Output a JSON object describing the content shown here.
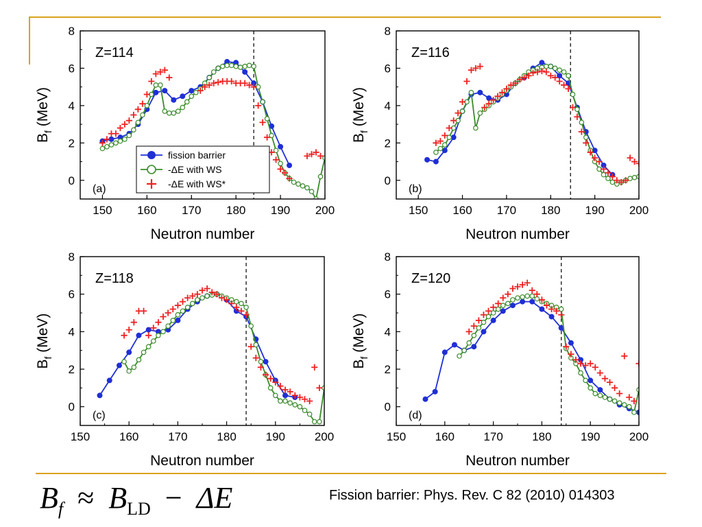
{
  "footer": {
    "formula": {
      "lhs": "B",
      "lhs_sub": "f",
      "approx": "≈",
      "rhs_b": "B",
      "rhs_sub": "LD",
      "minus": "−",
      "delta_e": "ΔE"
    },
    "citation": "Fission barrier: Phys. Rev. C 82 (2010) 014303"
  },
  "colors": {
    "fission_barrier": "#1f2fd6",
    "ws": "#3a8a2a",
    "ws_star": "#ee2222",
    "accent_rule": "#d9a21b"
  },
  "chart_data": [
    {
      "type": "line",
      "panel_label": "(a)",
      "title": "Z=114",
      "xlabel": "Neutron number",
      "ylabel": "B_f (MeV)",
      "ylabel_main": "B",
      "ylabel_sub": "f",
      "ylabel_rest": " (MeV)",
      "xlim": [
        145,
        200
      ],
      "ylim": [
        -1,
        8
      ],
      "xticks": [
        150,
        160,
        170,
        180,
        190,
        200
      ],
      "yticks": [
        0,
        2,
        4,
        6,
        8
      ],
      "vline": 184,
      "legend": {
        "position": "center-left",
        "entries": [
          "fission barrier",
          "-ΔE with WS",
          "-ΔE with WS*"
        ]
      },
      "series": [
        {
          "name": "fission barrier",
          "marker": "filled-circle",
          "x": [
            150,
            152,
            154,
            156,
            158,
            160,
            162,
            164,
            166,
            168,
            170,
            172,
            174,
            176,
            178,
            180,
            182,
            184,
            186,
            188,
            190,
            192
          ],
          "y": [
            2.1,
            2.2,
            2.3,
            2.5,
            3.0,
            3.8,
            4.7,
            4.8,
            4.3,
            4.5,
            4.8,
            5.0,
            5.5,
            6.0,
            6.35,
            6.3,
            5.8,
            5.2,
            4.2,
            2.9,
            1.8,
            0.8
          ]
        },
        {
          "name": "-ΔE with WS",
          "marker": "open-circle",
          "x": [
            150,
            151,
            152,
            153,
            154,
            155,
            156,
            157,
            158,
            159,
            160,
            161,
            162,
            163,
            164,
            165,
            166,
            167,
            168,
            169,
            170,
            171,
            172,
            173,
            174,
            175,
            176,
            177,
            178,
            179,
            180,
            181,
            182,
            183,
            184,
            185,
            186,
            187,
            188,
            189,
            190,
            191,
            192,
            193,
            194,
            195,
            196,
            197,
            198,
            199,
            200
          ],
          "y": [
            1.7,
            1.8,
            1.9,
            2.0,
            2.1,
            2.2,
            2.4,
            2.7,
            3.1,
            3.5,
            4.0,
            4.6,
            5.1,
            5.1,
            3.7,
            3.6,
            3.6,
            3.7,
            3.9,
            4.2,
            4.5,
            4.7,
            4.9,
            5.2,
            5.5,
            5.8,
            6.0,
            6.1,
            6.15,
            6.15,
            6.1,
            6.05,
            6.1,
            6.15,
            6.1,
            5.0,
            4.2,
            3.3,
            2.4,
            1.6,
            0.9,
            0.4,
            0.1,
            -0.1,
            -0.2,
            -0.3,
            -0.4,
            -0.6,
            -1.0,
            0.2,
            1.2
          ]
        },
        {
          "name": "-ΔE with WS*",
          "marker": "plus",
          "x": [
            150,
            151,
            152,
            153,
            154,
            155,
            156,
            157,
            158,
            159,
            160,
            161,
            162,
            163,
            164,
            165,
            172,
            173,
            174,
            175,
            176,
            177,
            178,
            179,
            180,
            181,
            182,
            183,
            184,
            185,
            186,
            187,
            188,
            189,
            190,
            191,
            192,
            196,
            197,
            198,
            199
          ],
          "y": [
            2.0,
            2.2,
            2.5,
            2.5,
            2.8,
            3.0,
            3.2,
            3.5,
            3.8,
            4.1,
            4.6,
            5.3,
            5.7,
            5.8,
            5.9,
            5.5,
            4.8,
            5.0,
            5.1,
            5.2,
            5.25,
            5.3,
            5.3,
            5.3,
            5.2,
            5.2,
            5.2,
            5.1,
            5.0,
            4.0,
            3.1,
            2.3,
            1.5,
            1.1,
            0.6,
            0.4,
            0.1,
            1.3,
            1.4,
            1.5,
            1.3
          ]
        }
      ]
    },
    {
      "type": "line",
      "panel_label": "(b)",
      "title": "Z=116",
      "xlabel": "Neutron number",
      "ylabel": "B_f (MeV)",
      "ylabel_main": "B",
      "ylabel_sub": "f",
      "ylabel_rest": " (MeV)",
      "xlim": [
        145,
        200
      ],
      "ylim": [
        -1,
        8
      ],
      "xticks": [
        150,
        160,
        170,
        180,
        190,
        200
      ],
      "yticks": [
        0,
        2,
        4,
        6,
        8
      ],
      "vline": 184.5,
      "series": [
        {
          "name": "fission barrier",
          "marker": "filled-circle",
          "x": [
            152,
            154,
            156,
            158,
            160,
            162,
            164,
            166,
            168,
            170,
            172,
            174,
            176,
            178,
            180,
            182,
            184,
            186,
            188,
            190,
            192,
            194
          ],
          "y": [
            1.1,
            1.0,
            1.6,
            2.3,
            3.7,
            4.6,
            4.7,
            4.4,
            4.3,
            4.6,
            5.2,
            5.5,
            6.0,
            6.3,
            6.1,
            5.6,
            5.2,
            3.9,
            2.6,
            1.6,
            0.8,
            0.3
          ]
        },
        {
          "name": "-ΔE with WS",
          "marker": "open-circle",
          "x": [
            154,
            155,
            156,
            157,
            158,
            159,
            160,
            161,
            162,
            163,
            164,
            165,
            166,
            167,
            168,
            169,
            170,
            171,
            172,
            173,
            174,
            175,
            176,
            177,
            178,
            179,
            180,
            181,
            182,
            183,
            184,
            185,
            186,
            187,
            188,
            189,
            190,
            191,
            192,
            193,
            194,
            195,
            196,
            197,
            198,
            199,
            200
          ],
          "y": [
            1.5,
            1.7,
            1.9,
            2.3,
            2.8,
            3.2,
            3.7,
            4.2,
            4.7,
            2.8,
            3.6,
            3.8,
            4.0,
            4.2,
            4.4,
            4.6,
            4.8,
            5.0,
            5.2,
            5.4,
            5.6,
            5.8,
            5.9,
            6.0,
            6.05,
            6.1,
            6.1,
            6.0,
            5.9,
            5.8,
            5.6,
            4.6,
            3.8,
            3.1,
            2.3,
            1.6,
            1.0,
            0.6,
            0.3,
            0.1,
            -0.1,
            -0.2,
            -0.1,
            0.0,
            0.1,
            0.15,
            0.2
          ]
        },
        {
          "name": "-ΔE with WS*",
          "marker": "plus",
          "x": [
            154,
            155,
            156,
            157,
            158,
            159,
            160,
            161,
            162,
            163,
            164,
            165,
            166,
            167,
            168,
            169,
            170,
            171,
            172,
            173,
            174,
            175,
            176,
            177,
            178,
            179,
            180,
            181,
            182,
            183,
            184,
            185,
            186,
            187,
            188,
            189,
            190,
            191,
            192,
            193,
            194,
            195,
            196,
            197,
            198,
            199,
            200
          ],
          "y": [
            2.0,
            2.1,
            2.4,
            2.8,
            3.2,
            3.6,
            4.2,
            5.3,
            5.9,
            6.0,
            6.1,
            3.9,
            4.1,
            4.3,
            4.5,
            4.7,
            4.9,
            5.1,
            5.2,
            5.4,
            5.5,
            5.6,
            5.75,
            5.8,
            5.85,
            5.8,
            5.6,
            5.5,
            5.3,
            5.1,
            4.9,
            3.9,
            3.4,
            2.6,
            2.0,
            1.5,
            1.2,
            1.0,
            0.6,
            0.4,
            0.2,
            0.0,
            -0.1,
            0.0,
            1.2,
            1.0,
            0.9
          ]
        }
      ]
    },
    {
      "type": "line",
      "panel_label": "(c)",
      "title": "Z=118",
      "xlabel": "Neutron number",
      "ylabel": "B_f (MeV)",
      "ylabel_main": "B",
      "ylabel_sub": "f",
      "ylabel_rest": " (MeV)",
      "xlim": [
        150,
        200
      ],
      "ylim": [
        -1,
        8
      ],
      "xticks": [
        150,
        160,
        170,
        180,
        190,
        200
      ],
      "yticks": [
        0,
        2,
        4,
        6,
        8
      ],
      "vline": 184,
      "series": [
        {
          "name": "fission barrier",
          "marker": "filled-circle",
          "x": [
            154,
            156,
            158,
            160,
            162,
            164,
            166,
            168,
            170,
            172,
            174,
            176,
            178,
            180,
            182,
            184,
            186,
            188,
            190,
            192,
            194
          ],
          "y": [
            0.6,
            1.4,
            2.2,
            2.9,
            3.8,
            4.1,
            4.0,
            4.1,
            4.6,
            5.2,
            5.6,
            5.9,
            6.0,
            5.7,
            5.1,
            4.8,
            3.6,
            2.4,
            1.4,
            0.6,
            0.5
          ]
        },
        {
          "name": "-ΔE with WS",
          "marker": "open-circle",
          "x": [
            159,
            160,
            161,
            162,
            163,
            164,
            165,
            166,
            167,
            168,
            169,
            170,
            171,
            172,
            173,
            174,
            175,
            176,
            177,
            178,
            179,
            180,
            181,
            182,
            183,
            184,
            185,
            186,
            187,
            188,
            189,
            190,
            191,
            192,
            193,
            194,
            195,
            196,
            197,
            198,
            199,
            200
          ],
          "y": [
            2.4,
            1.9,
            2.1,
            2.5,
            2.9,
            3.2,
            3.5,
            3.8,
            4.0,
            4.3,
            4.6,
            4.9,
            5.1,
            5.3,
            5.5,
            5.7,
            5.8,
            5.9,
            5.95,
            6.0,
            5.9,
            5.8,
            5.7,
            5.6,
            5.5,
            5.3,
            4.3,
            3.3,
            2.4,
            1.7,
            1.0,
            0.6,
            0.3,
            0.3,
            0.2,
            0.1,
            0.0,
            -0.2,
            -0.4,
            -0.8,
            -0.8,
            1.0
          ]
        },
        {
          "name": "-ΔE with WS*",
          "marker": "plus",
          "x": [
            159,
            160,
            161,
            162,
            163,
            164,
            165,
            166,
            167,
            168,
            169,
            170,
            171,
            172,
            173,
            174,
            175,
            176,
            177,
            178,
            179,
            180,
            181,
            182,
            183,
            184,
            185,
            186,
            187,
            188,
            189,
            190,
            191,
            192,
            193,
            194,
            195,
            196,
            197,
            198,
            199
          ],
          "y": [
            3.8,
            4.1,
            4.5,
            5.1,
            5.1,
            3.8,
            4.2,
            4.5,
            4.8,
            5.0,
            5.2,
            5.4,
            5.6,
            5.8,
            5.9,
            6.0,
            6.2,
            6.3,
            6.1,
            6.0,
            5.8,
            5.7,
            5.5,
            5.3,
            5.1,
            4.9,
            3.2,
            2.6,
            2.1,
            1.7,
            1.5,
            1.3,
            1.1,
            0.9,
            0.8,
            0.6,
            0.5,
            0.4,
            0.3,
            2.1,
            1.0
          ]
        }
      ]
    },
    {
      "type": "line",
      "panel_label": "(d)",
      "title": "Z=120",
      "xlabel": "Neutron number",
      "ylabel": "B_f (MeV)",
      "ylabel_main": "B",
      "ylabel_sub": "f",
      "ylabel_rest": " (MeV)",
      "xlim": [
        150,
        200
      ],
      "ylim": [
        -1,
        8
      ],
      "xticks": [
        150,
        160,
        170,
        180,
        190,
        200
      ],
      "yticks": [
        0,
        2,
        4,
        6,
        8
      ],
      "vline": 184,
      "series": [
        {
          "name": "fission barrier",
          "marker": "filled-circle",
          "x": [
            156,
            158,
            160,
            162,
            164,
            166,
            168,
            170,
            172,
            174,
            176,
            178,
            180,
            182,
            184,
            186,
            188,
            190,
            192,
            194,
            196,
            198,
            200
          ],
          "y": [
            0.4,
            0.8,
            2.9,
            3.3,
            3.0,
            3.2,
            4.0,
            4.6,
            5.1,
            5.4,
            5.6,
            5.6,
            5.2,
            4.8,
            4.2,
            3.4,
            2.5,
            1.4,
            0.9,
            0.4,
            0.1,
            -0.1,
            -0.3
          ]
        },
        {
          "name": "-ΔE with WS",
          "marker": "open-circle",
          "x": [
            163,
            164,
            165,
            166,
            167,
            168,
            169,
            170,
            171,
            172,
            173,
            174,
            175,
            176,
            177,
            178,
            179,
            180,
            181,
            182,
            183,
            184,
            185,
            186,
            187,
            188,
            189,
            190,
            191,
            192,
            193,
            194,
            195,
            196,
            197,
            198,
            199,
            200
          ],
          "y": [
            2.7,
            3.0,
            3.4,
            3.8,
            4.2,
            4.5,
            4.8,
            5.0,
            5.2,
            5.4,
            5.5,
            5.7,
            5.8,
            5.85,
            5.9,
            5.9,
            5.75,
            5.6,
            5.5,
            5.4,
            5.3,
            5.2,
            3.1,
            2.6,
            2.3,
            1.8,
            1.4,
            1.0,
            0.7,
            0.6,
            0.5,
            0.4,
            0.3,
            0.2,
            0.1,
            0.0,
            -0.3,
            0.9
          ]
        },
        {
          "name": "-ΔE with WS*",
          "marker": "plus",
          "x": [
            165,
            166,
            167,
            168,
            169,
            170,
            171,
            172,
            173,
            174,
            175,
            176,
            177,
            178,
            179,
            180,
            181,
            182,
            183,
            184,
            185,
            186,
            187,
            188,
            189,
            190,
            191,
            192,
            193,
            194,
            195,
            196,
            197,
            198,
            199,
            200
          ],
          "y": [
            4.0,
            4.3,
            4.6,
            4.9,
            5.1,
            5.3,
            5.5,
            5.8,
            6.0,
            6.3,
            6.4,
            6.5,
            6.6,
            6.2,
            6.0,
            5.7,
            5.4,
            5.2,
            5.1,
            4.9,
            3.2,
            2.8,
            2.5,
            2.3,
            2.2,
            2.3,
            2.1,
            1.8,
            1.5,
            1.3,
            1.0,
            0.7,
            2.7,
            0.5,
            0.3,
            2.3
          ]
        }
      ]
    }
  ]
}
